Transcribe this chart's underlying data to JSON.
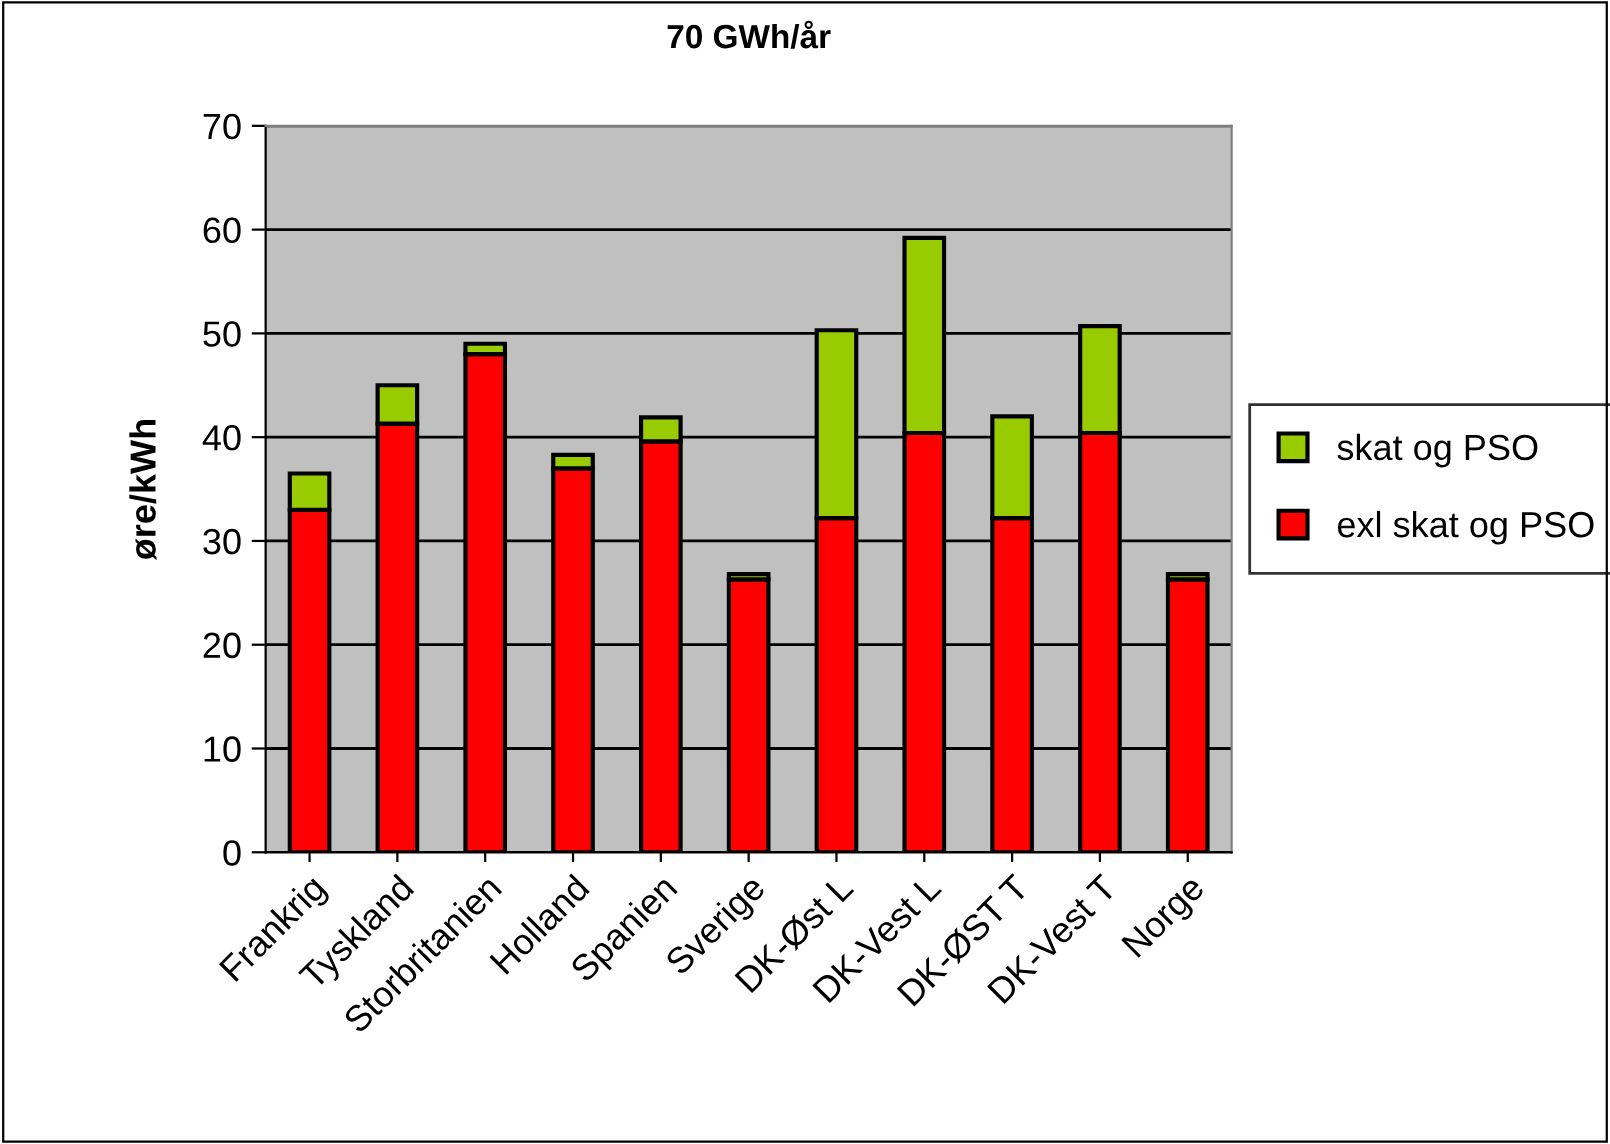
{
  "chart_data": {
    "type": "bar",
    "title": "70 GWh/år",
    "ylabel": "øre/kWh",
    "stacked": true,
    "categories": [
      "Frankrig",
      "Tyskland",
      "Storbritanien",
      "Holland",
      "Spanien",
      "Sverige",
      "DK-Øst L",
      "DK-Vest L",
      "DK-ØST T",
      "DK-Vest T",
      "Norge"
    ],
    "series": [
      {
        "name": "exl skat og PSO",
        "color": "#ff0000",
        "values": [
          33,
          41.3,
          48,
          37,
          39.6,
          26.3,
          32.2,
          40.4,
          32.2,
          40.4,
          26.3
        ]
      },
      {
        "name": "skat og PSO",
        "color": "#99cc00",
        "values": [
          3.5,
          3.7,
          1,
          1.3,
          2.3,
          0.5,
          18.1,
          18.8,
          9.8,
          10.3,
          0.5
        ]
      }
    ],
    "ylim": [
      0,
      70
    ],
    "yticks": [
      0,
      10,
      20,
      30,
      40,
      50,
      60,
      70
    ],
    "grid": "y",
    "legend": "right"
  }
}
